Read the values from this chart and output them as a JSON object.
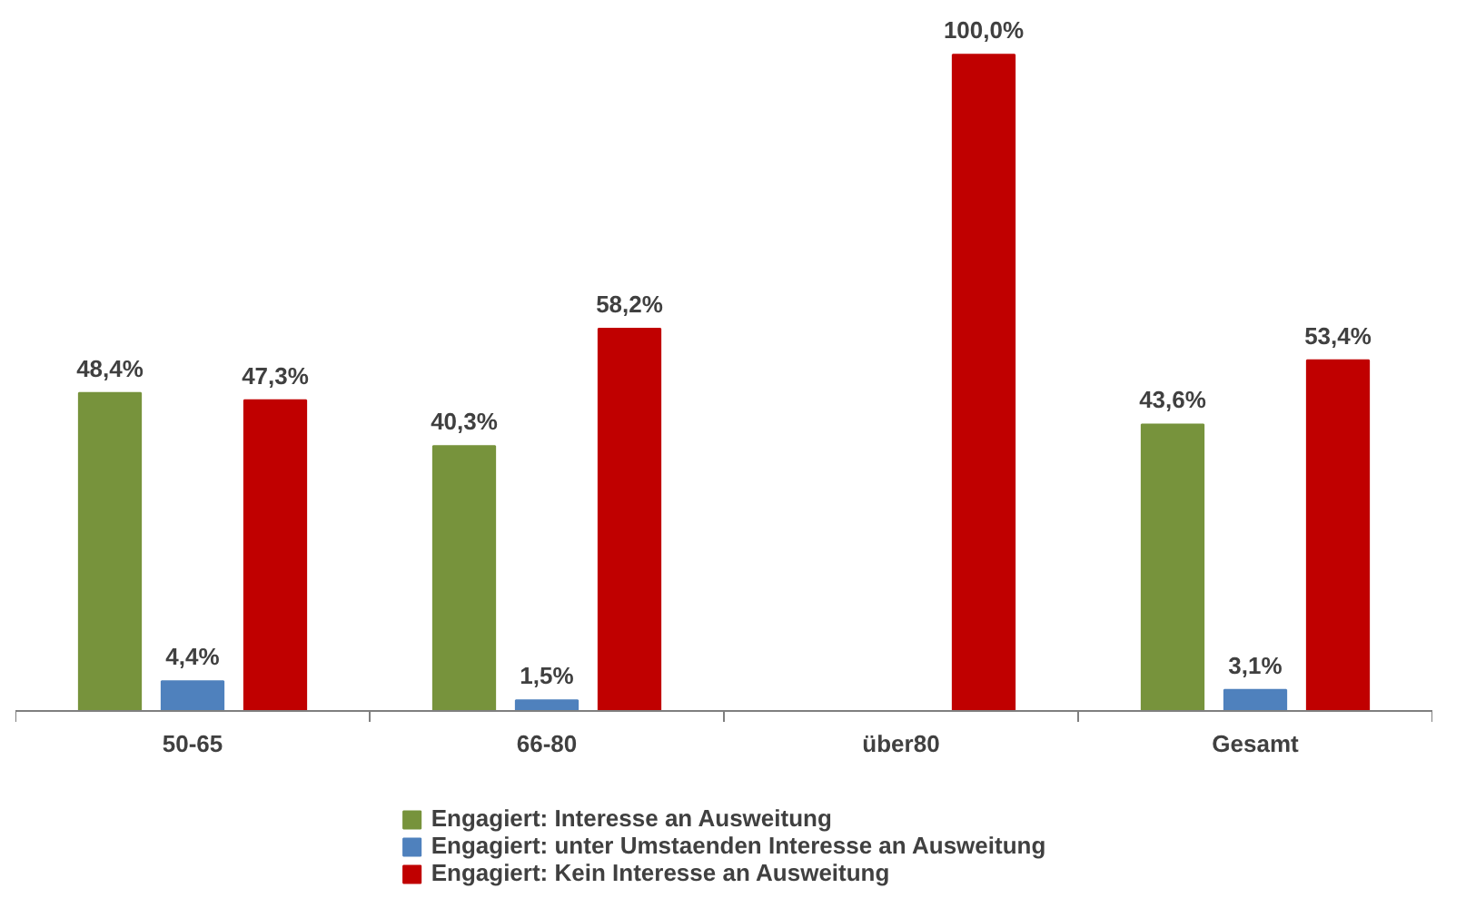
{
  "chart_data": {
    "type": "bar",
    "categories": [
      "50-65",
      "66-80",
      "über80",
      "Gesamt"
    ],
    "series": [
      {
        "name": "Engagiert: Interesse an Ausweitung",
        "color": "#77933c",
        "values": [
          48.4,
          40.3,
          null,
          43.6
        ],
        "value_labels": [
          "48,4%",
          "40,3%",
          null,
          "43,6%"
        ]
      },
      {
        "name": "Engagiert: unter Umstaenden Interesse an Ausweitung",
        "color": "#4f81bd",
        "values": [
          4.4,
          1.5,
          null,
          3.1
        ],
        "value_labels": [
          "4,4%",
          "1,5%",
          null,
          "3,1%"
        ]
      },
      {
        "name": "Engagiert: Kein Interesse an Ausweitung",
        "color": "#c00000",
        "values": [
          47.3,
          58.2,
          100.0,
          53.4
        ],
        "value_labels": [
          "47,3%",
          "58,2%",
          "100,0%",
          "53,4%"
        ]
      }
    ],
    "legend": "bottom"
  }
}
